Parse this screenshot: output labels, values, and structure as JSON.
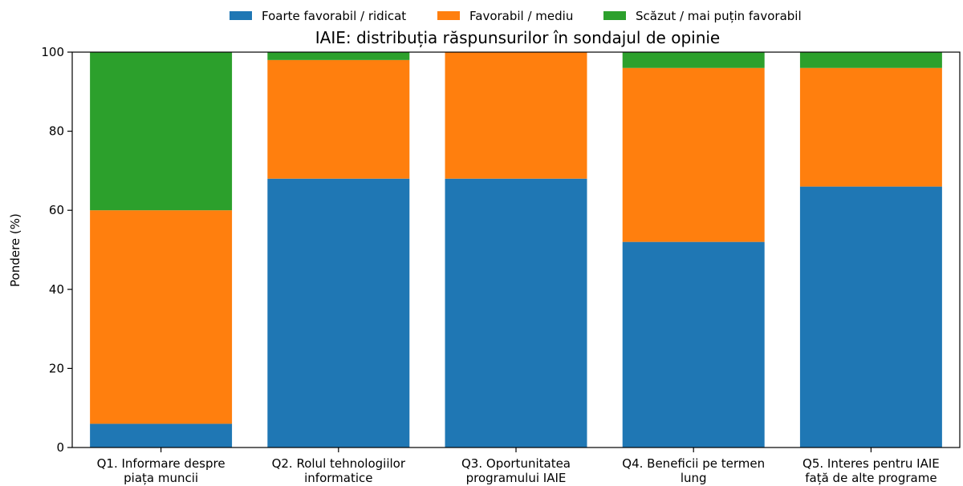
{
  "chart_data": {
    "type": "bar",
    "stacked": true,
    "title": "IAIE: distribuția răspunsurilor în sondajul de opinie",
    "xlabel": "",
    "ylabel": "Pondere (%)",
    "ylim": [
      0,
      100
    ],
    "yticks": [
      "0",
      "20",
      "40",
      "60",
      "80",
      "100"
    ],
    "grid": false,
    "legend_position": "top-center",
    "categories": [
      [
        "Q1. Informare despre",
        "piața muncii"
      ],
      [
        "Q2. Rolul tehnologiilor",
        "informatice"
      ],
      [
        "Q3. Oportunitatea",
        "programului IAIE"
      ],
      [
        "Q4. Beneficii pe termen",
        "lung"
      ],
      [
        "Q5. Interes pentru IAIE",
        "față de alte programe"
      ]
    ],
    "series": [
      {
        "name": "Foarte favorabil / ridicat",
        "color": "#1f77b4",
        "values": [
          6,
          68,
          68,
          52,
          66
        ]
      },
      {
        "name": "Favorabil / mediu",
        "color": "#ff7f0e",
        "values": [
          54,
          30,
          32,
          44,
          30
        ]
      },
      {
        "name": "Scăzut / mai puțin favorabil",
        "color": "#2ca02c",
        "values": [
          40,
          2,
          0,
          4,
          4
        ]
      }
    ]
  }
}
